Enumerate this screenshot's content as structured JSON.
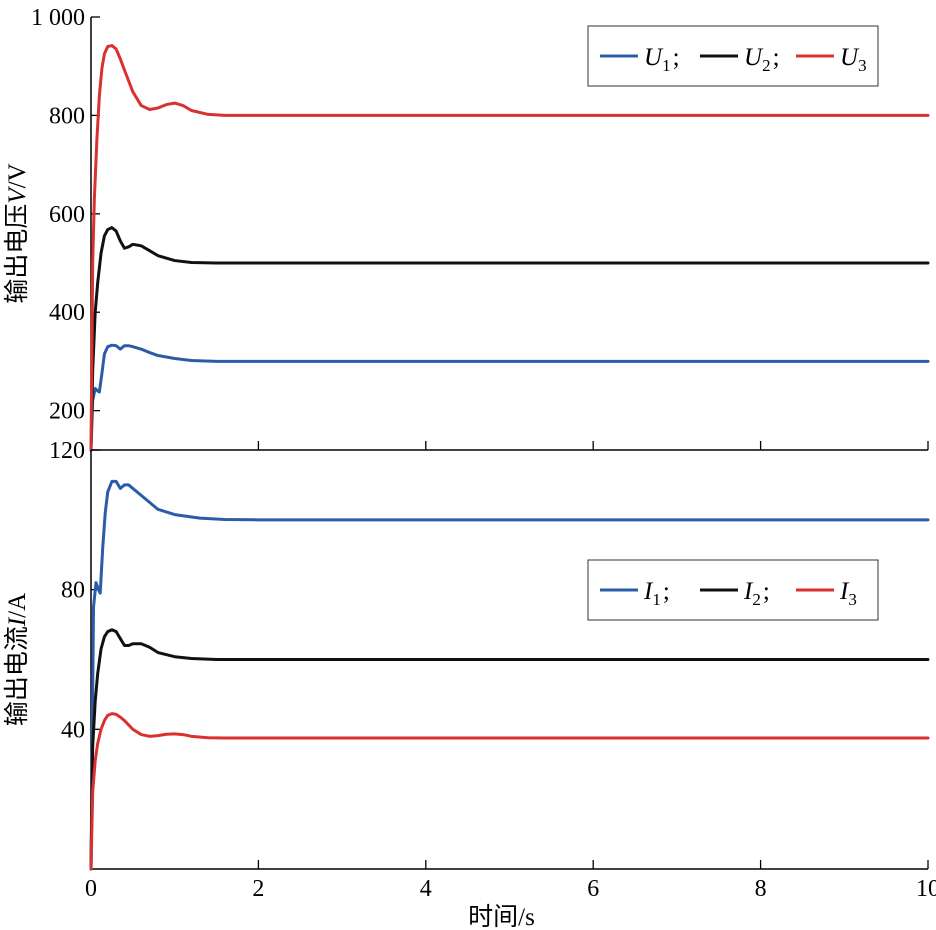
{
  "chart_data": [
    {
      "type": "line",
      "panel": "top",
      "ylabel": "输出电压V/V",
      "ylabel_parts": [
        "输出电压",
        "V",
        "/V"
      ],
      "xlim": [
        0,
        10
      ],
      "ylim": [
        120,
        1000
      ],
      "yticks": [
        200,
        400,
        600,
        800,
        1000
      ],
      "ytick_labels": [
        "200",
        "400",
        "600",
        "800",
        "1 000"
      ],
      "grid": false,
      "legend_position": "top-right",
      "series": [
        {
          "name": "U1",
          "legend_main": "U",
          "legend_sub": "1",
          "legend_sep": ";",
          "color": "#2a5ca8",
          "x": [
            0,
            0.02,
            0.05,
            0.08,
            0.1,
            0.13,
            0.16,
            0.2,
            0.25,
            0.3,
            0.35,
            0.4,
            0.45,
            0.5,
            0.6,
            0.7,
            0.8,
            1.0,
            1.2,
            1.5,
            2,
            3,
            4,
            6,
            8,
            10
          ],
          "y": [
            120,
            220,
            245,
            240,
            238,
            275,
            315,
            330,
            333,
            332,
            325,
            332,
            332,
            330,
            325,
            318,
            312,
            306,
            302,
            300,
            300,
            300,
            300,
            300,
            300,
            300
          ]
        },
        {
          "name": "U2",
          "legend_main": "U",
          "legend_sub": "2",
          "legend_sep": ";",
          "color": "#111111",
          "x": [
            0,
            0.02,
            0.05,
            0.08,
            0.12,
            0.16,
            0.2,
            0.25,
            0.3,
            0.35,
            0.4,
            0.45,
            0.5,
            0.6,
            0.7,
            0.8,
            1.0,
            1.2,
            1.5,
            2,
            3,
            4,
            6,
            8,
            10
          ],
          "y": [
            120,
            280,
            400,
            460,
            520,
            555,
            568,
            572,
            565,
            545,
            530,
            533,
            538,
            535,
            525,
            515,
            505,
            501,
            500,
            500,
            500,
            500,
            500,
            500,
            500
          ]
        },
        {
          "name": "U3",
          "legend_main": "U",
          "legend_sub": "3",
          "legend_sep": "",
          "color": "#d93030",
          "x": [
            0,
            0.02,
            0.04,
            0.07,
            0.1,
            0.13,
            0.16,
            0.2,
            0.25,
            0.3,
            0.35,
            0.4,
            0.5,
            0.6,
            0.7,
            0.8,
            0.9,
            1.0,
            1.1,
            1.2,
            1.4,
            1.6,
            2,
            3,
            4,
            6,
            8,
            10
          ],
          "y": [
            120,
            500,
            630,
            750,
            840,
            895,
            925,
            940,
            942,
            935,
            915,
            892,
            848,
            820,
            812,
            815,
            822,
            825,
            820,
            810,
            802,
            800,
            800,
            800,
            800,
            800,
            800,
            800
          ]
        }
      ]
    },
    {
      "type": "line",
      "panel": "bottom",
      "xlabel": "时间/s",
      "ylabel": "输出电流I/A",
      "ylabel_parts": [
        "输出电流",
        "I",
        "/A"
      ],
      "xlim": [
        0,
        10
      ],
      "xticks": [
        0,
        2,
        4,
        6,
        8,
        10
      ],
      "xtick_labels": [
        "0",
        "2",
        "4",
        "6",
        "8",
        "10"
      ],
      "ylim": [
        0,
        120
      ],
      "yticks": [
        40,
        80,
        120
      ],
      "ytick_labels": [
        "40",
        "80",
        "120"
      ],
      "grid": false,
      "legend_position": "center-right",
      "series": [
        {
          "name": "I1",
          "legend_main": "I",
          "legend_sub": "1",
          "legend_sep": ";",
          "color": "#2a5ca8",
          "x": [
            0,
            0.03,
            0.06,
            0.09,
            0.11,
            0.14,
            0.17,
            0.2,
            0.25,
            0.3,
            0.35,
            0.4,
            0.45,
            0.5,
            0.6,
            0.7,
            0.8,
            1.0,
            1.3,
            1.6,
            2,
            3,
            4,
            6,
            8,
            10
          ],
          "y": [
            0,
            75,
            82,
            80,
            79,
            92,
            102,
            108,
            111,
            111,
            109,
            110,
            110,
            109,
            107,
            105,
            103,
            101.5,
            100.5,
            100.1,
            100,
            100,
            100,
            100,
            100,
            100
          ]
        },
        {
          "name": "I2",
          "legend_main": "I",
          "legend_sub": "2",
          "legend_sep": ";",
          "color": "#111111",
          "x": [
            0,
            0.02,
            0.05,
            0.08,
            0.12,
            0.16,
            0.2,
            0.25,
            0.3,
            0.35,
            0.4,
            0.45,
            0.5,
            0.6,
            0.7,
            0.8,
            1.0,
            1.2,
            1.5,
            2,
            3,
            4,
            6,
            8,
            10
          ],
          "y": [
            0,
            35,
            48,
            56,
            63,
            66.5,
            68,
            68.5,
            68,
            66,
            64,
            64,
            64.5,
            64.5,
            63.5,
            62,
            60.8,
            60.3,
            60,
            60,
            60,
            60,
            60,
            60,
            60
          ]
        },
        {
          "name": "I3",
          "legend_main": "I",
          "legend_sub": "3",
          "legend_sep": "",
          "color": "#d93030",
          "x": [
            0,
            0.02,
            0.05,
            0.08,
            0.12,
            0.16,
            0.2,
            0.25,
            0.3,
            0.35,
            0.4,
            0.5,
            0.6,
            0.7,
            0.8,
            0.9,
            1.0,
            1.1,
            1.2,
            1.4,
            1.6,
            2,
            3,
            4,
            6,
            8,
            10
          ],
          "y": [
            0,
            22,
            31,
            36,
            40,
            42.5,
            44,
            44.5,
            44.3,
            43.5,
            42.5,
            40,
            38.5,
            38,
            38.2,
            38.6,
            38.7,
            38.5,
            38,
            37.6,
            37.5,
            37.5,
            37.5,
            37.5,
            37.5,
            37.5,
            37.5
          ]
        }
      ]
    }
  ]
}
